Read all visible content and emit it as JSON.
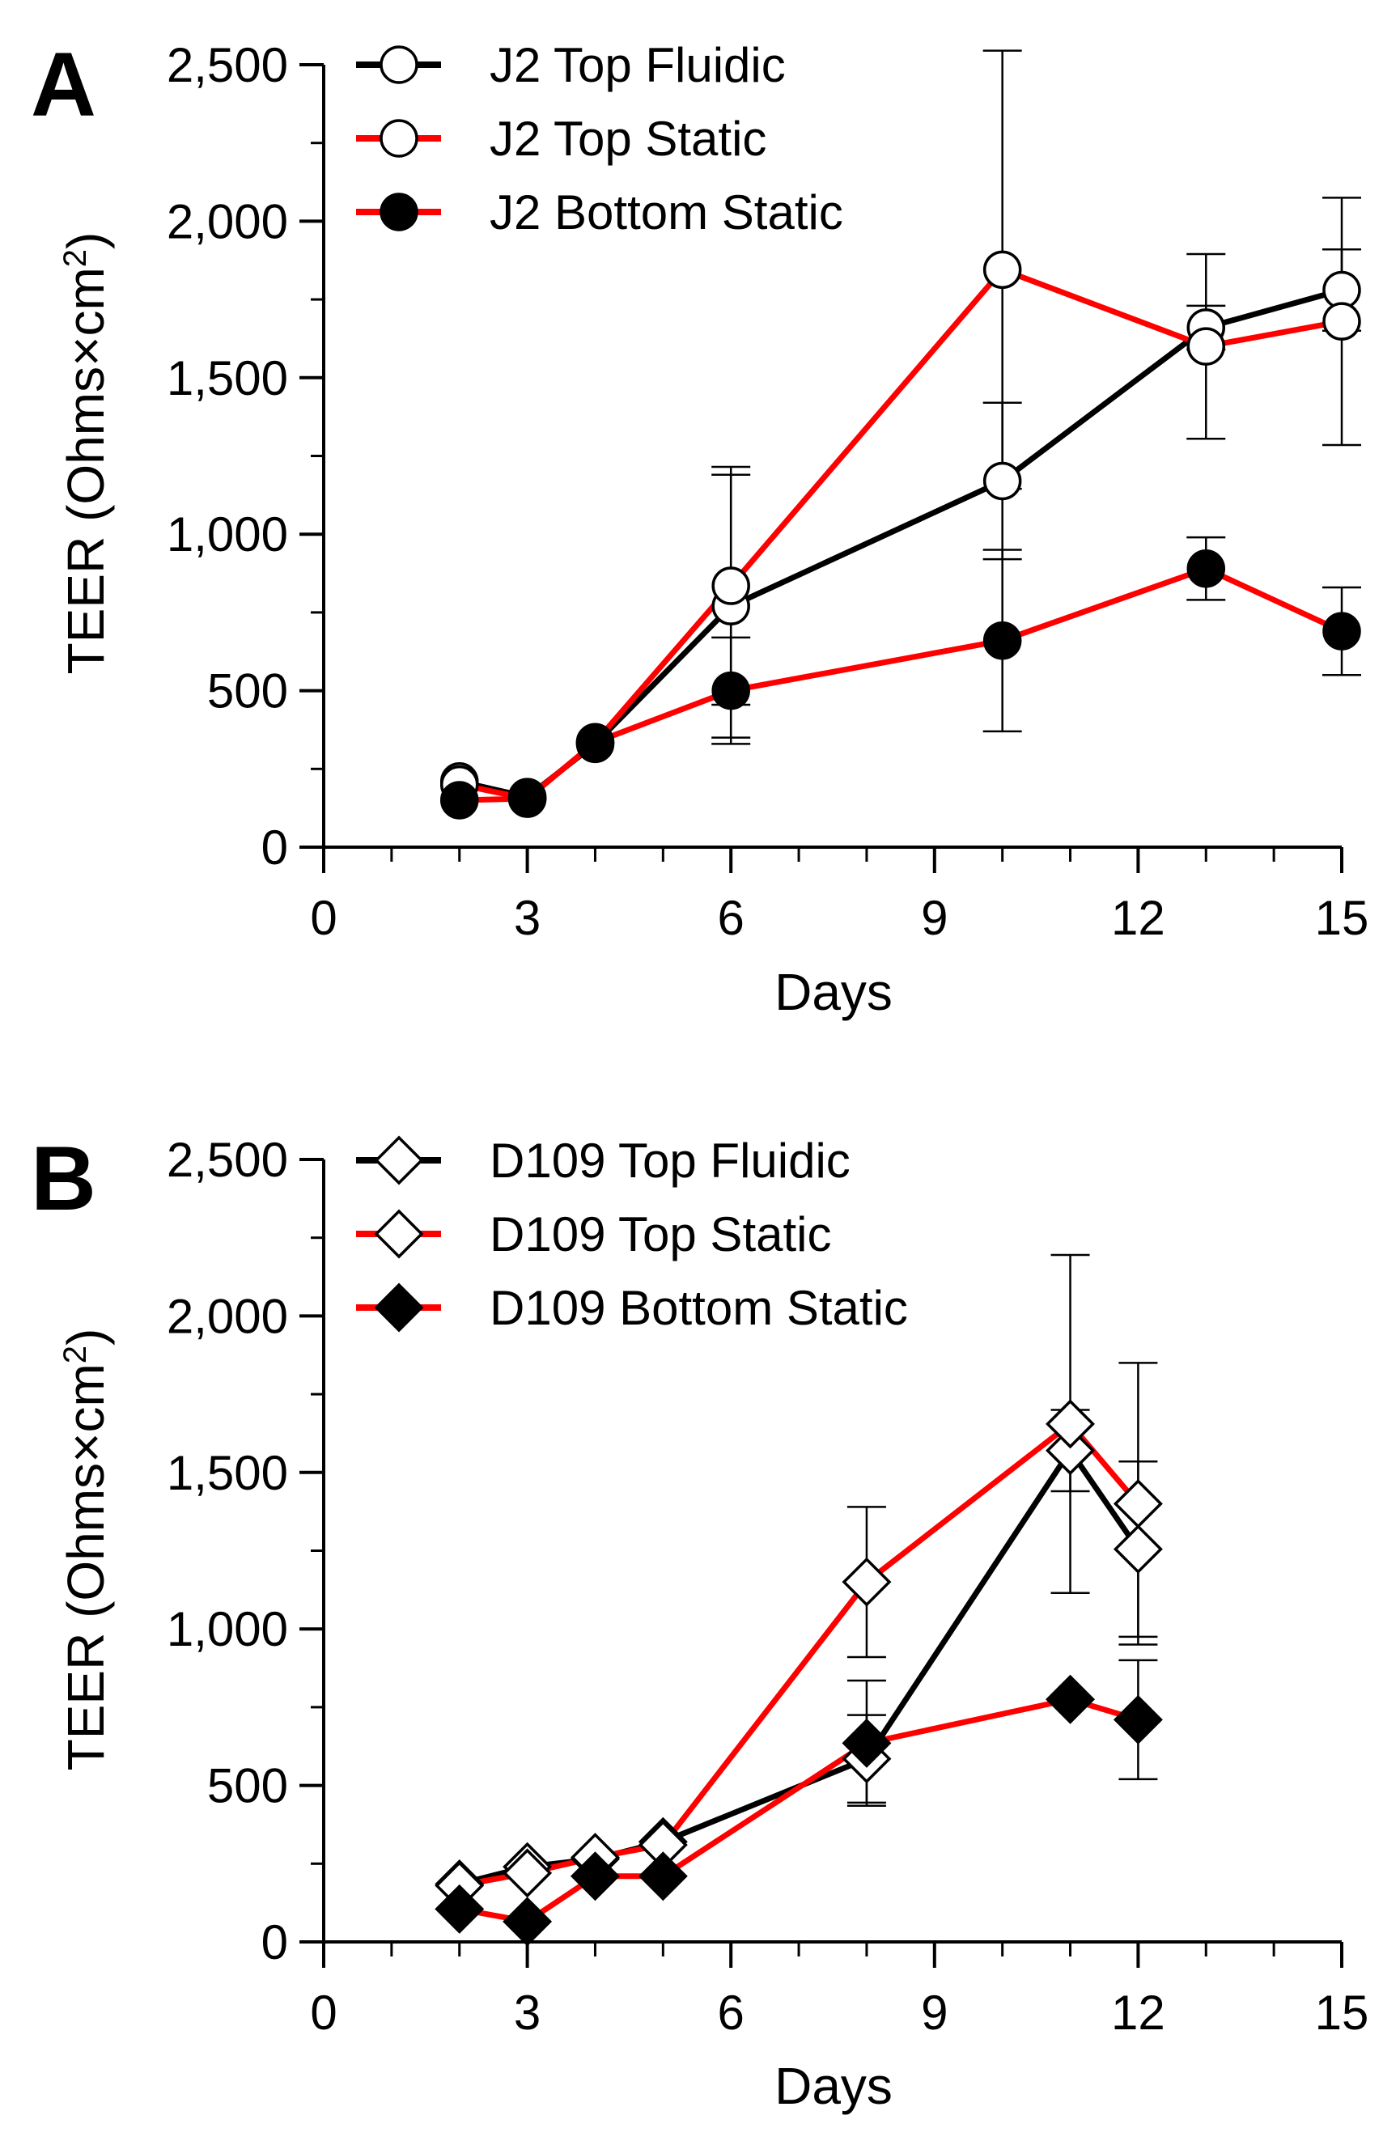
{
  "chart_data": [
    {
      "type": "line",
      "panel_label": "A",
      "xlabel": "Days",
      "ylabel_main": "TEER (Ohms×cm",
      "ylabel_sup": "2",
      "ylabel_close": ")",
      "xlim": [
        0,
        15
      ],
      "ylim": [
        0,
        2500
      ],
      "x_ticks": [
        0,
        3,
        6,
        9,
        12,
        15
      ],
      "x_tick_labels": [
        "0",
        "3",
        "6",
        "9",
        "12",
        "15"
      ],
      "y_ticks": [
        0,
        500,
        1000,
        1500,
        2000,
        2500
      ],
      "y_tick_labels": [
        "0",
        "500",
        "1,000",
        "1,500",
        "2,000",
        "2,500"
      ],
      "grid": false,
      "legend_position": "top-left",
      "series": [
        {
          "name": "J2 Top Fluidic",
          "color": "#000000",
          "marker": "circle",
          "fill": "#ffffff",
          "x": [
            2,
            3,
            4,
            6,
            10,
            13,
            15
          ],
          "y": [
            210,
            160,
            330,
            770,
            1170,
            1660,
            1780
          ],
          "err": [
            0,
            0,
            0,
            420,
            250,
            70,
            130
          ]
        },
        {
          "name": "J2 Top Static",
          "color": "#ff0000",
          "marker": "circle",
          "fill": "#ffffff",
          "x": [
            2,
            3,
            4,
            6,
            10,
            13,
            15
          ],
          "y": [
            200,
            155,
            335,
            835,
            1845,
            1600,
            1680
          ],
          "err": [
            0,
            0,
            0,
            380,
            700,
            295,
            395
          ]
        },
        {
          "name": "J2 Bottom Static",
          "color": "#ff0000",
          "marker": "circle",
          "fill": "#000000",
          "x": [
            2,
            3,
            4,
            6,
            10,
            13,
            15
          ],
          "y": [
            150,
            155,
            335,
            500,
            660,
            890,
            690
          ],
          "err": [
            0,
            0,
            0,
            170,
            290,
            100,
            140
          ]
        }
      ]
    },
    {
      "type": "line",
      "panel_label": "B",
      "xlabel": "Days",
      "ylabel_main": "TEER (Ohms×cm",
      "ylabel_sup": "2",
      "ylabel_close": ")",
      "xlim": [
        0,
        15
      ],
      "ylim": [
        0,
        2500
      ],
      "x_ticks": [
        0,
        3,
        6,
        9,
        12,
        15
      ],
      "x_tick_labels": [
        "0",
        "3",
        "6",
        "9",
        "12",
        "15"
      ],
      "y_ticks": [
        0,
        500,
        1000,
        1500,
        2000,
        2500
      ],
      "y_tick_labels": [
        "0",
        "500",
        "1,000",
        "1,500",
        "2,000",
        "2,500"
      ],
      "grid": false,
      "legend_position": "top-left",
      "series": [
        {
          "name": "D109 Top Fluidic",
          "color": "#000000",
          "marker": "diamond",
          "fill": "#ffffff",
          "x": [
            2,
            3,
            4,
            5,
            8,
            11,
            12
          ],
          "y": [
            185,
            240,
            265,
            320,
            585,
            1570,
            1255
          ],
          "err": [
            0,
            0,
            0,
            0,
            140,
            130,
            280
          ]
        },
        {
          "name": "D109 Top Static",
          "color": "#ff0000",
          "marker": "diamond",
          "fill": "#ffffff",
          "x": [
            2,
            3,
            4,
            5,
            8,
            11,
            12
          ],
          "y": [
            180,
            220,
            270,
            310,
            1150,
            1655,
            1400
          ],
          "err": [
            0,
            0,
            0,
            0,
            240,
            540,
            450
          ]
        },
        {
          "name": "D109 Bottom Static",
          "color": "#ff0000",
          "marker": "diamond",
          "fill": "#000000",
          "x": [
            2,
            3,
            4,
            5,
            8,
            11,
            12
          ],
          "y": [
            105,
            65,
            210,
            210,
            635,
            775,
            710
          ],
          "err": [
            0,
            0,
            0,
            0,
            200,
            0,
            190
          ]
        }
      ]
    }
  ]
}
